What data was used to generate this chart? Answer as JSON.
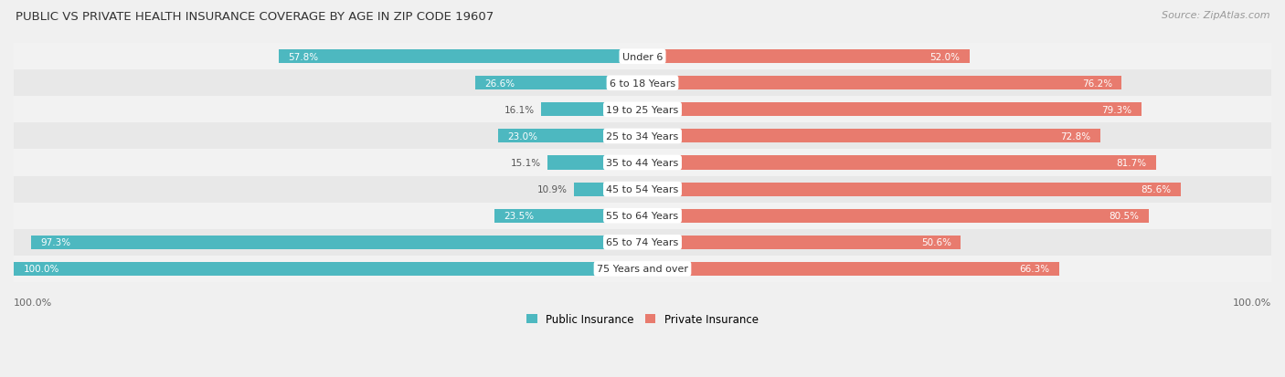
{
  "title": "PUBLIC VS PRIVATE HEALTH INSURANCE COVERAGE BY AGE IN ZIP CODE 19607",
  "source": "Source: ZipAtlas.com",
  "categories": [
    "Under 6",
    "6 to 18 Years",
    "19 to 25 Years",
    "25 to 34 Years",
    "35 to 44 Years",
    "45 to 54 Years",
    "55 to 64 Years",
    "65 to 74 Years",
    "75 Years and over"
  ],
  "public_values": [
    57.8,
    26.6,
    16.1,
    23.0,
    15.1,
    10.9,
    23.5,
    97.3,
    100.0
  ],
  "private_values": [
    52.0,
    76.2,
    79.3,
    72.8,
    81.7,
    85.6,
    80.5,
    50.6,
    66.3
  ],
  "public_color": "#4db8c0",
  "private_color": "#e87b6e",
  "public_color_pale": "#a8dde2",
  "private_color_pale": "#f2b5ae",
  "row_bg_light": "#f2f2f2",
  "row_bg_dark": "#e8e8e8",
  "max_val": 100.0,
  "bar_height": 0.52,
  "legend_public": "Public Insurance",
  "legend_private": "Private Insurance",
  "label_threshold": 20.0
}
